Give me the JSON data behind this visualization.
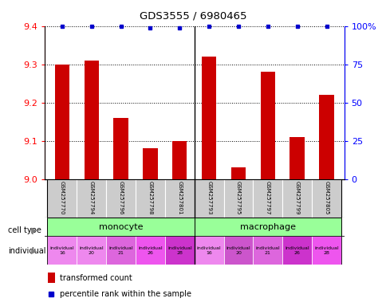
{
  "title": "GDS3555 / 6980465",
  "samples": [
    "GSM257770",
    "GSM257794",
    "GSM257796",
    "GSM257798",
    "GSM257801",
    "GSM257793",
    "GSM257795",
    "GSM257797",
    "GSM257799",
    "GSM257805"
  ],
  "bar_values": [
    9.3,
    9.31,
    9.16,
    9.08,
    9.1,
    9.32,
    9.03,
    9.28,
    9.11,
    9.22
  ],
  "percentile_values": [
    100,
    100,
    100,
    99,
    99,
    100,
    100,
    100,
    100,
    100
  ],
  "ylim_left": [
    9.0,
    9.4
  ],
  "ylim_right": [
    0,
    100
  ],
  "yticks_left": [
    9.0,
    9.1,
    9.2,
    9.3,
    9.4
  ],
  "yticks_right": [
    0,
    25,
    50,
    75,
    100
  ],
  "bar_color": "#cc0000",
  "dot_color": "#0000cc",
  "cell_types": [
    "monocyte",
    "macrophage"
  ],
  "cell_type_color": "#99ff99",
  "individuals": [
    "individual\n16",
    "individual\n20",
    "individual\n21",
    "individual\n26",
    "individual\n28",
    "individual\n16",
    "individual\n20",
    "individual\n21",
    "individual\n26",
    "individual\n28"
  ],
  "individual_colors": [
    "#ee88ee",
    "#ee88ee",
    "#dd66dd",
    "#ee55ee",
    "#cc33cc",
    "#ee88ee",
    "#cc55cc",
    "#dd66dd",
    "#cc33cc",
    "#ee55ee"
  ],
  "bg_color_samples": "#cccccc",
  "legend_red_label": "transformed count",
  "legend_blue_label": "percentile rank within the sample"
}
